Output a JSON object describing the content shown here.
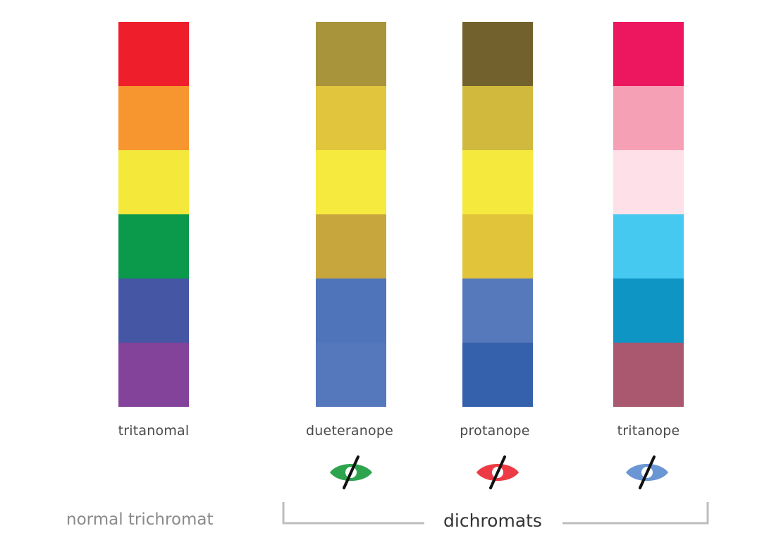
{
  "columns": [
    {
      "id": "tritanomal",
      "label": "tritanomal",
      "swatches": [
        "#ee1f2a",
        "#f7952e",
        "#f4e93b",
        "#0b9a4b",
        "#4556a4",
        "#84439b"
      ],
      "eye": null
    },
    {
      "id": "dueteranope",
      "label": "dueteranope",
      "swatches": [
        "#a8943a",
        "#e0c53d",
        "#f6ea3e",
        "#c7a73d",
        "#4f74b9",
        "#5577bb"
      ],
      "eye": {
        "icon": "crossed-eye-icon",
        "color": "#2ea44f"
      }
    },
    {
      "id": "protanope",
      "label": "protanope",
      "swatches": [
        "#73612d",
        "#d0b93d",
        "#f6e93e",
        "#e2c43a",
        "#5579ba",
        "#3560ab"
      ],
      "eye": {
        "icon": "crossed-eye-icon",
        "color": "#ec3b44"
      }
    },
    {
      "id": "tritanope",
      "label": "tritanope",
      "swatches": [
        "#ec175e",
        "#f6a0b6",
        "#fde0e8",
        "#46c9f0",
        "#0e95c4",
        "#a9586f"
      ],
      "eye": {
        "icon": "crossed-eye-icon",
        "color": "#6a96d4"
      }
    }
  ],
  "groups": {
    "left_label": "normal trichromat",
    "right_label": "dichromats"
  }
}
